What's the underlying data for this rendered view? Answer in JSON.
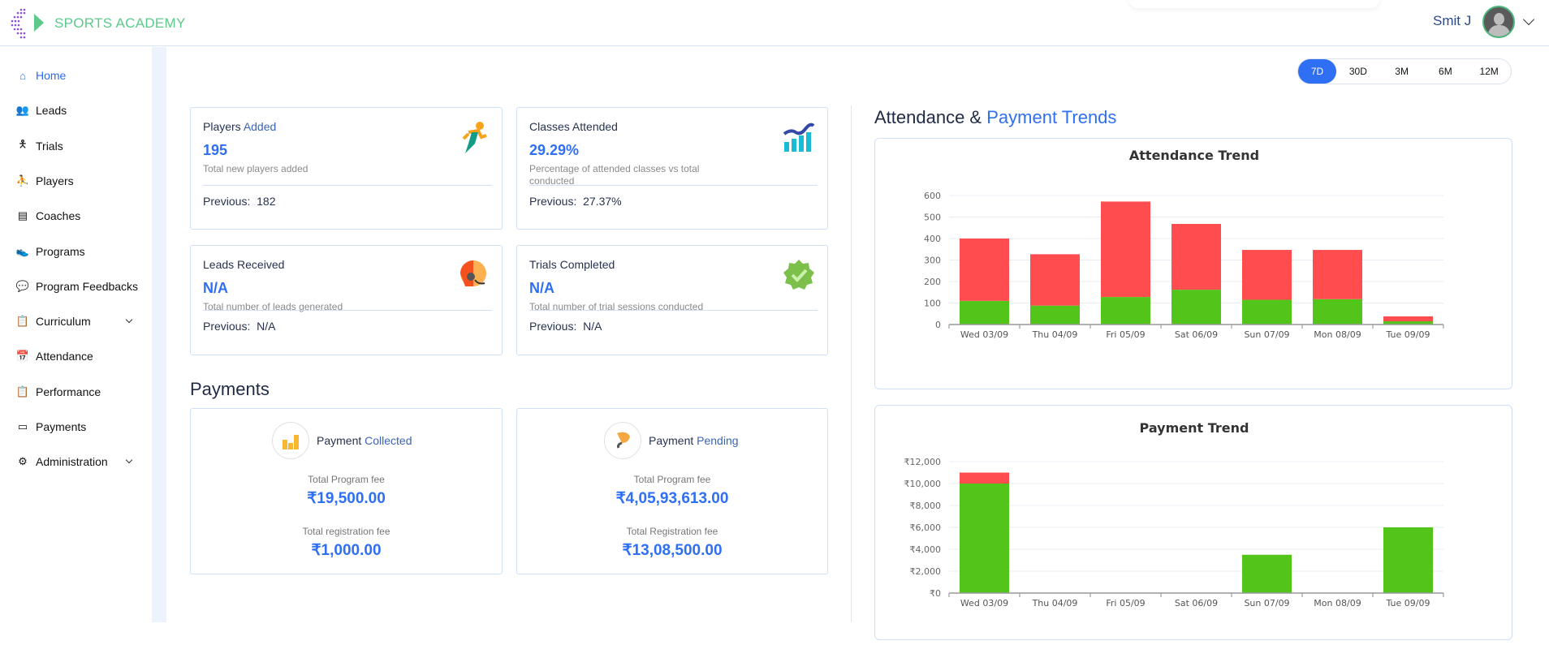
{
  "header": {
    "brand": "SPORTS ACADEMY",
    "user_name": "Smit J"
  },
  "sidebar": {
    "items": [
      {
        "label": "Home",
        "icon": "home-icon",
        "active": true
      },
      {
        "label": "Leads",
        "icon": "leads-icon"
      },
      {
        "label": "Trials",
        "icon": "trials-icon"
      },
      {
        "label": "Players",
        "icon": "players-icon"
      },
      {
        "label": "Coaches",
        "icon": "coaches-icon"
      },
      {
        "label": "Programs",
        "icon": "programs-icon"
      },
      {
        "label": "Program Feedbacks",
        "icon": "feedback-icon"
      },
      {
        "label": "Curriculum",
        "icon": "curriculum-icon",
        "expandable": true
      },
      {
        "label": "Attendance",
        "icon": "calendar-icon"
      },
      {
        "label": "Performance",
        "icon": "clipboard-icon"
      },
      {
        "label": "Payments",
        "icon": "card-icon"
      },
      {
        "label": "Administration",
        "icon": "admin-icon",
        "expandable": true
      }
    ]
  },
  "filters": {
    "options": [
      "7D",
      "30D",
      "3M",
      "6M",
      "12M"
    ],
    "selected": "7D"
  },
  "stats": [
    {
      "title_a": "Players",
      "title_b": "Added",
      "value": "195",
      "desc": "Total new players added",
      "prev_label": "Previous:",
      "prev": "182",
      "icon": "runner-icon"
    },
    {
      "title_a": "Classes Attended",
      "title_b": "",
      "value": "29.29%",
      "desc": "Percentage of attended classes vs total conducted",
      "prev_label": "Previous:",
      "prev": "27.37%",
      "icon": "chart-trend-icon"
    },
    {
      "title_a": "Leads Received",
      "title_b": "",
      "value": "N/A",
      "desc": "Total number of leads generated",
      "prev_label": "Previous:",
      "prev": "N/A",
      "icon": "headset-icon"
    },
    {
      "title_a": "Trials Completed",
      "title_b": "",
      "value": "N/A",
      "desc": "Total number of trial sessions conducted",
      "prev_label": "Previous:",
      "prev": "N/A",
      "icon": "verified-badge-icon"
    }
  ],
  "payments": {
    "heading": "Payments",
    "cards": [
      {
        "title_a": "Payment",
        "title_b": "Collected",
        "fee1_label": "Total Program fee",
        "fee1": "₹19,500.00",
        "fee2_label": "Total registration fee",
        "fee2": "₹1,000.00",
        "icon": "coins-icon"
      },
      {
        "title_a": "Payment",
        "title_b": "Pending",
        "fee1_label": "Total Program fee",
        "fee1": "₹4,05,93,613.00",
        "fee2_label": "Total Registration fee",
        "fee2": "₹13,08,500.00",
        "icon": "hand-coin-icon"
      }
    ]
  },
  "trends": {
    "heading_a": "Attendance &",
    "heading_b": "Payment Trends"
  },
  "colors": {
    "accent": "#2f6ff3",
    "green": "#52c41a",
    "red": "#ff4d4f",
    "brand": "#5cc98b"
  },
  "chart_data": [
    {
      "type": "bar",
      "stacked": true,
      "title": "Attendance Trend",
      "categories": [
        "Wed 03/09",
        "Thu 04/09",
        "Fri 05/09",
        "Sat 06/09",
        "Sun 07/09",
        "Mon 08/09",
        "Tue 09/09"
      ],
      "series": [
        {
          "color": "#52c41a",
          "values": [
            110,
            88,
            128,
            162,
            115,
            118,
            15
          ]
        },
        {
          "color": "#ff4d4f",
          "values": [
            290,
            239,
            444,
            306,
            232,
            229,
            23
          ]
        }
      ],
      "ylim": [
        0,
        600
      ],
      "yticks": [
        "0",
        "100",
        "200",
        "300",
        "400",
        "500",
        "600"
      ],
      "grid": true
    },
    {
      "type": "bar",
      "stacked": true,
      "title": "Payment Trend",
      "categories": [
        "Wed 03/09",
        "Thu 04/09",
        "Fri 05/09",
        "Sat 06/09",
        "Sun 07/09",
        "Mon 08/09",
        "Tue 09/09"
      ],
      "series": [
        {
          "color": "#52c41a",
          "values": [
            10000,
            0,
            0,
            0,
            3500,
            0,
            6000
          ]
        },
        {
          "color": "#ff4d4f",
          "values": [
            1000,
            0,
            0,
            0,
            0,
            0,
            0
          ]
        }
      ],
      "ylim": [
        0,
        12000
      ],
      "yticks": [
        "₹0",
        "₹2,000",
        "₹4,000",
        "₹6,000",
        "₹8,000",
        "₹10,000",
        "₹12,000"
      ],
      "grid": true
    }
  ]
}
